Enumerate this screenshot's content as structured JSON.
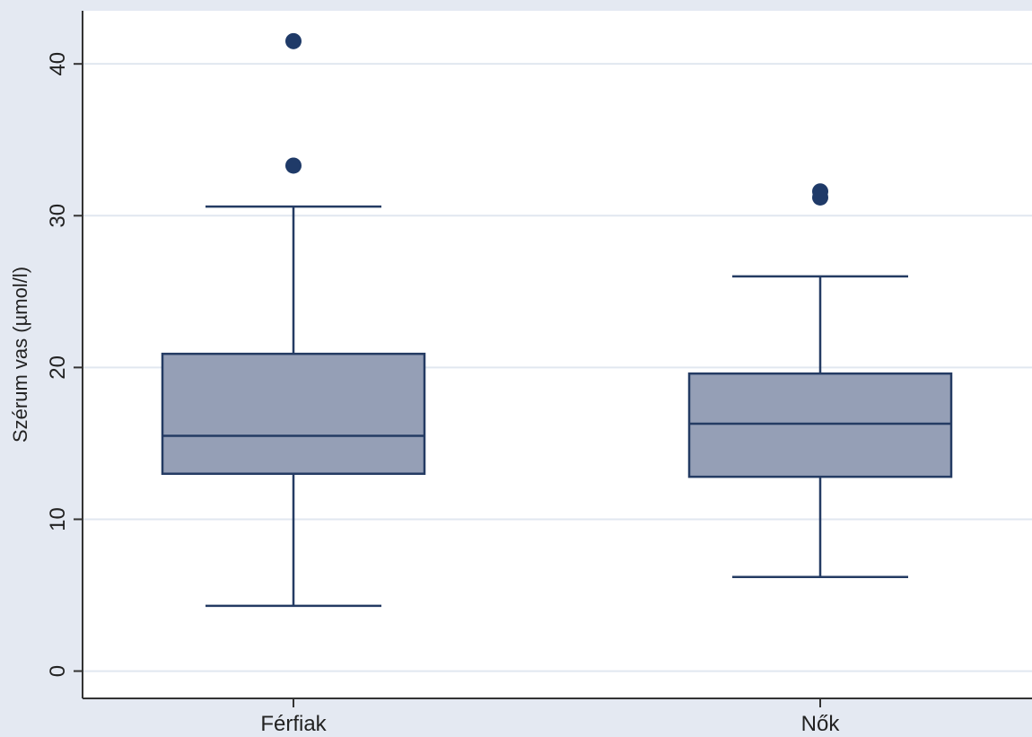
{
  "chart_data": {
    "type": "box",
    "ylabel": "Szérum vas (µmol/l)",
    "xlabel": "",
    "ylim": [
      -1.8,
      43.5
    ],
    "yticks": [
      0,
      10,
      20,
      30,
      40
    ],
    "grid": true,
    "categories": [
      "Férfiak",
      "Nők"
    ],
    "boxes": [
      {
        "category": "Férfiak",
        "whisker_low": 4.3,
        "q1": 13.0,
        "median": 15.5,
        "q3": 20.9,
        "whisker_high": 30.6,
        "outliers": [
          33.3,
          41.5
        ]
      },
      {
        "category": "Nők",
        "whisker_low": 6.2,
        "q1": 12.8,
        "median": 16.3,
        "q3": 19.6,
        "whisker_high": 26.0,
        "outliers": [
          31.2,
          31.6
        ]
      }
    ]
  },
  "colors": {
    "page_background": "#e4e9f2",
    "plot_background": "#ffffff",
    "grid": "#e1e7f0",
    "box_fill": "#959fb6",
    "box_stroke": "#243b63",
    "outlier": "#1f3a68",
    "axis": "#333333"
  }
}
